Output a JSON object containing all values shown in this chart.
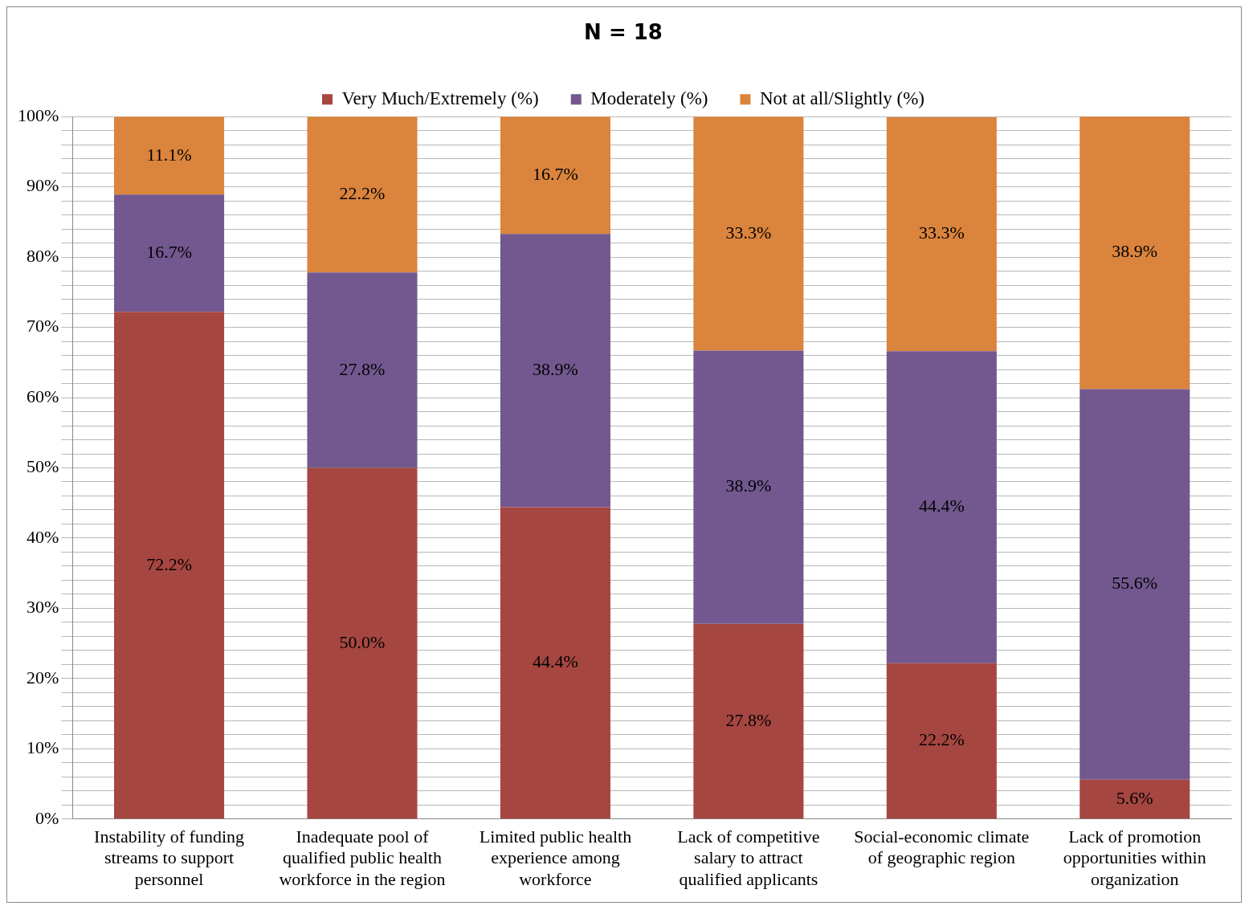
{
  "chart_data": {
    "type": "bar",
    "title": "N = 18",
    "stacked": true,
    "legend": "top",
    "grid": "y",
    "categories": [
      "Instability of funding streams to support personnel",
      "Inadequate pool of qualified public health workforce in the region",
      "Limited public health experience among workforce",
      "Lack of competitive salary to attract qualified applicants",
      "Social-economic climate of geographic region",
      "Lack of promotion opportunities within organization"
    ],
    "series": [
      {
        "name": "Very Much/Extremely (%)",
        "color": "#a64641",
        "values": [
          72.2,
          50.0,
          44.4,
          27.8,
          22.2,
          5.6
        ],
        "value_labels": [
          "72.2%",
          "50.0%",
          "44.4%",
          "27.8%",
          "22.2%",
          "5.6%"
        ]
      },
      {
        "name": "Moderately (%)",
        "color": "#72588f",
        "values": [
          16.7,
          27.8,
          38.9,
          38.9,
          44.4,
          55.6
        ],
        "value_labels": [
          "16.7%",
          "27.8%",
          "38.9%",
          "38.9%",
          "44.4%",
          "55.6%"
        ]
      },
      {
        "name": "Not at all/Slightly (%)",
        "color": "#db843d",
        "values": [
          11.1,
          22.2,
          16.7,
          33.3,
          33.3,
          38.9
        ],
        "value_labels": [
          "11.1%",
          "22.2%",
          "16.7%",
          "33.3%",
          "33.3%",
          "38.9%"
        ]
      }
    ],
    "ylim": [
      0,
      100
    ],
    "yticks": [
      {
        "value": 0,
        "label": "0%"
      },
      {
        "value": 2,
        "label": null
      },
      {
        "value": 4,
        "label": null
      },
      {
        "value": 6,
        "label": null
      },
      {
        "value": 8,
        "label": null
      },
      {
        "value": 10,
        "label": "10%"
      },
      {
        "value": 12,
        "label": null
      },
      {
        "value": 14,
        "label": null
      },
      {
        "value": 16,
        "label": null
      },
      {
        "value": 18,
        "label": null
      },
      {
        "value": 20,
        "label": "20%"
      },
      {
        "value": 22,
        "label": null
      },
      {
        "value": 24,
        "label": null
      },
      {
        "value": 26,
        "label": null
      },
      {
        "value": 28,
        "label": null
      },
      {
        "value": 30,
        "label": "30%"
      },
      {
        "value": 32,
        "label": null
      },
      {
        "value": 34,
        "label": null
      },
      {
        "value": 36,
        "label": null
      },
      {
        "value": 38,
        "label": null
      },
      {
        "value": 40,
        "label": "40%"
      },
      {
        "value": 42,
        "label": null
      },
      {
        "value": 44,
        "label": null
      },
      {
        "value": 46,
        "label": null
      },
      {
        "value": 48,
        "label": null
      },
      {
        "value": 50,
        "label": "50%"
      },
      {
        "value": 52,
        "label": null
      },
      {
        "value": 54,
        "label": null
      },
      {
        "value": 56,
        "label": null
      },
      {
        "value": 58,
        "label": null
      },
      {
        "value": 60,
        "label": "60%"
      },
      {
        "value": 62,
        "label": null
      },
      {
        "value": 64,
        "label": null
      },
      {
        "value": 66,
        "label": null
      },
      {
        "value": 68,
        "label": null
      },
      {
        "value": 70,
        "label": "70%"
      },
      {
        "value": 72,
        "label": null
      },
      {
        "value": 74,
        "label": null
      },
      {
        "value": 76,
        "label": null
      },
      {
        "value": 78,
        "label": null
      },
      {
        "value": 80,
        "label": "80%"
      },
      {
        "value": 82,
        "label": null
      },
      {
        "value": 84,
        "label": null
      },
      {
        "value": 86,
        "label": null
      },
      {
        "value": 88,
        "label": null
      },
      {
        "value": 90,
        "label": "90%"
      },
      {
        "value": 92,
        "label": null
      },
      {
        "value": 94,
        "label": null
      },
      {
        "value": 96,
        "label": null
      },
      {
        "value": 98,
        "label": null
      },
      {
        "value": 100,
        "label": "100%"
      }
    ]
  }
}
